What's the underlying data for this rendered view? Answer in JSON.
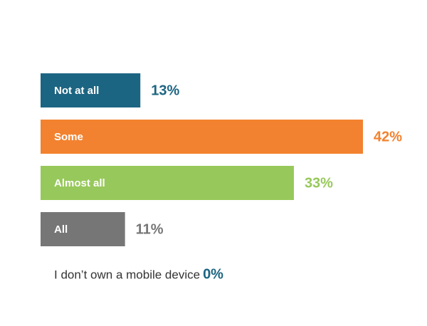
{
  "chart_data": {
    "type": "bar",
    "orientation": "horizontal",
    "categories": [
      "Not at all",
      "Some",
      "Almost all",
      "All",
      "I don’t own a mobile device"
    ],
    "values": [
      13,
      42,
      33,
      11,
      0
    ],
    "value_labels": [
      "13%",
      "42%",
      "33%",
      "11%",
      "0%"
    ],
    "colors": [
      "#1c6582",
      "#f2822f",
      "#97c85b",
      "#767676",
      "#1c6582"
    ]
  }
}
